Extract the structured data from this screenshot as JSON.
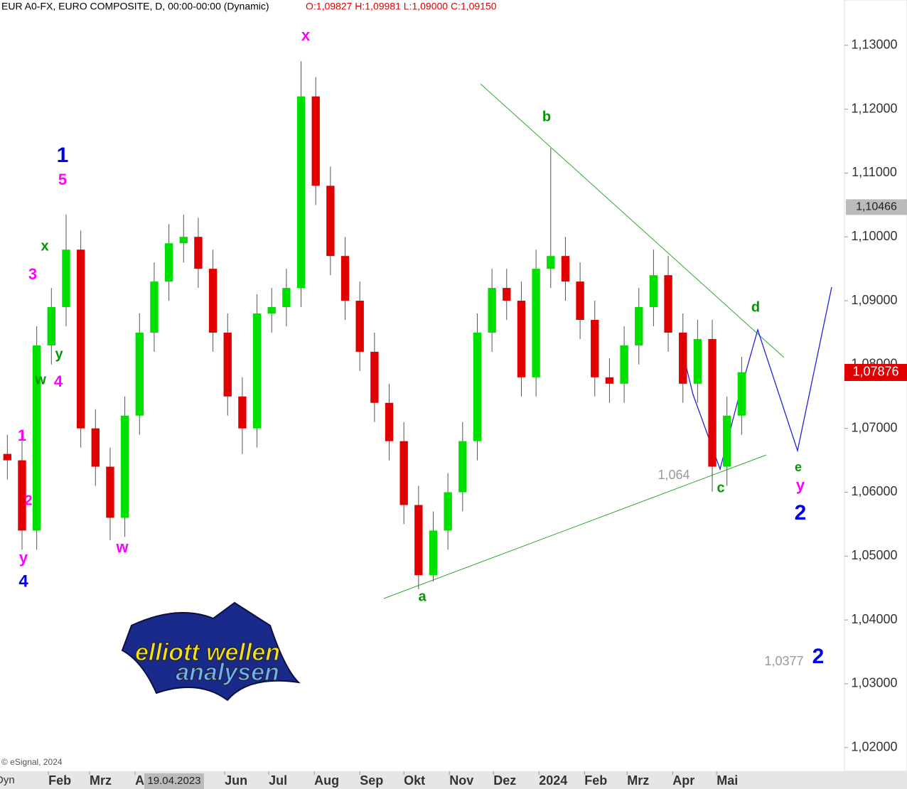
{
  "chart_data": {
    "type": "candlestick",
    "title": "EUR A0-FX, EURO COMPOSITE, D, 00:00-00:00 (Dynamic)",
    "subtitle": "O:1,09827 H:1,09981 L:1,09000 C:1,09150",
    "x": [
      3,
      13,
      23,
      33,
      43,
      53,
      63,
      73,
      83,
      93,
      103,
      113,
      123,
      133,
      143,
      153,
      163,
      173,
      183,
      193,
      203,
      213,
      223,
      233,
      243,
      253,
      263,
      273,
      283,
      293,
      303,
      313,
      323,
      333,
      343,
      353,
      363,
      373,
      383,
      393,
      403,
      413,
      423,
      433,
      443,
      453,
      463,
      473,
      483,
      493,
      503
    ],
    "open": [
      1.066,
      1.065,
      1.054,
      1.083,
      1.089,
      1.098,
      1.07,
      1.064,
      1.056,
      1.072,
      1.085,
      1.093,
      1.099,
      1.1,
      1.095,
      1.085,
      1.075,
      1.07,
      1.088,
      1.089,
      1.092,
      1.122,
      1.108,
      1.097,
      1.09,
      1.082,
      1.074,
      1.068,
      1.058,
      1.047,
      1.054,
      1.06,
      1.068,
      1.085,
      1.092,
      1.09,
      1.078,
      1.095,
      1.097,
      1.093,
      1.087,
      1.078,
      1.077,
      1.083,
      1.089,
      1.094,
      1.085,
      1.077,
      1.084,
      1.064,
      1.072
    ],
    "high": [
      1.069,
      1.068,
      1.086,
      1.092,
      1.1035,
      1.101,
      1.073,
      1.067,
      1.075,
      1.088,
      1.096,
      1.102,
      1.1035,
      1.103,
      1.098,
      1.088,
      1.078,
      1.091,
      1.092,
      1.095,
      1.1275,
      1.125,
      1.111,
      1.1,
      1.093,
      1.085,
      1.077,
      1.071,
      1.061,
      1.057,
      1.063,
      1.071,
      1.088,
      1.095,
      1.095,
      1.093,
      1.098,
      1.1139,
      1.1,
      1.096,
      1.09,
      1.081,
      1.086,
      1.092,
      1.098,
      1.097,
      1.088,
      1.087,
      1.087,
      1.075,
      1.0812
    ],
    "low": [
      1.062,
      1.051,
      1.051,
      1.08,
      1.086,
      1.067,
      1.061,
      1.0525,
      1.053,
      1.069,
      1.082,
      1.09,
      1.096,
      1.092,
      1.082,
      1.072,
      1.066,
      1.067,
      1.085,
      1.086,
      1.089,
      1.105,
      1.094,
      1.087,
      1.079,
      1.071,
      1.065,
      1.055,
      1.0448,
      1.046,
      1.051,
      1.057,
      1.065,
      1.082,
      1.087,
      1.075,
      1.075,
      1.092,
      1.09,
      1.084,
      1.075,
      1.074,
      1.074,
      1.08,
      1.086,
      1.082,
      1.074,
      1.074,
      1.0601,
      1.061,
      1.069
    ],
    "close": [
      1.065,
      1.054,
      1.083,
      1.089,
      1.098,
      1.07,
      1.064,
      1.056,
      1.072,
      1.085,
      1.093,
      1.099,
      1.1,
      1.095,
      1.085,
      1.075,
      1.07,
      1.088,
      1.089,
      1.092,
      1.122,
      1.108,
      1.097,
      1.09,
      1.082,
      1.074,
      1.068,
      1.058,
      1.047,
      1.054,
      1.06,
      1.068,
      1.085,
      1.092,
      1.09,
      1.078,
      1.095,
      1.097,
      1.093,
      1.087,
      1.078,
      1.077,
      1.083,
      1.089,
      1.094,
      1.085,
      1.077,
      1.084,
      1.064,
      1.072,
      1.0788
    ],
    "up_color": "#00e000",
    "down_color": "#e00000",
    "xlim": [
      -2,
      573
    ],
    "xticks": [
      {
        "value": 31,
        "label": "Feb"
      },
      {
        "value": 59,
        "label": "Mrz"
      },
      {
        "value": 90,
        "label": "A"
      },
      {
        "value": 151,
        "label": "Jun"
      },
      {
        "value": 181,
        "label": "Jul"
      },
      {
        "value": 212,
        "label": "Aug"
      },
      {
        "value": 243,
        "label": "Sep"
      },
      {
        "value": 273,
        "label": "Okt"
      },
      {
        "value": 304,
        "label": "Nov"
      },
      {
        "value": 334,
        "label": "Dez"
      },
      {
        "value": 365,
        "label": "2024"
      },
      {
        "value": 396,
        "label": "Feb"
      },
      {
        "value": 425,
        "label": "Mrz"
      },
      {
        "value": 456,
        "label": "Apr"
      },
      {
        "value": 486,
        "label": "Mai"
      }
    ],
    "ylim": [
      1.0163,
      1.1371
    ],
    "yticks": [
      {
        "value": 1.02,
        "label": "1,02000"
      },
      {
        "value": 1.03,
        "label": "1,03000"
      },
      {
        "value": 1.04,
        "label": "1,04000"
      },
      {
        "value": 1.05,
        "label": "1,05000"
      },
      {
        "value": 1.06,
        "label": "1,06000"
      },
      {
        "value": 1.07,
        "label": "1,07000"
      },
      {
        "value": 1.08,
        "label": "1,08000"
      },
      {
        "value": 1.09,
        "label": "1,09000"
      },
      {
        "value": 1.1,
        "label": "1,10000"
      },
      {
        "value": 1.11,
        "label": "1,11000"
      },
      {
        "value": 1.12,
        "label": "1,12000"
      },
      {
        "value": 1.13,
        "label": "1,13000"
      }
    ],
    "crosshair_price": {
      "value": 1.10466,
      "label": "1,10466"
    },
    "last_price": {
      "value": 1.07876,
      "label": "1,07876"
    },
    "crosshair_date": "19.04.2023",
    "interval_label": "Dyn",
    "copyright": "© eSignal, 2024",
    "logo": [
      "elliott wellen",
      "analysen"
    ],
    "annotations": [
      {
        "text": "x",
        "color": "#ff00ff"
      },
      {
        "text": "1",
        "color": "#0000ee"
      },
      {
        "text": "5",
        "color": "#ff00ff"
      },
      {
        "text": "x",
        "color": "#009900"
      },
      {
        "text": "3",
        "color": "#ff00ff"
      },
      {
        "text": "y",
        "color": "#009900"
      },
      {
        "text": "w",
        "color": "#009900"
      },
      {
        "text": "4",
        "color": "#ff00ff"
      },
      {
        "text": "1",
        "color": "#ff00ff"
      },
      {
        "text": "2",
        "color": "#ff00ff"
      },
      {
        "text": "y",
        "color": "#ff00ff"
      },
      {
        "text": "4",
        "color": "#0000ee"
      },
      {
        "text": "w",
        "color": "#ff00ff"
      },
      {
        "text": "b",
        "color": "#009900"
      },
      {
        "text": "d",
        "color": "#009900"
      },
      {
        "text": "1,064",
        "color": "#999999"
      },
      {
        "text": "c",
        "color": "#009900"
      },
      {
        "text": "e",
        "color": "#009900"
      },
      {
        "text": "y",
        "color": "#ff00ff"
      },
      {
        "text": "2",
        "color": "#0000ee"
      },
      {
        "text": "a",
        "color": "#009900"
      },
      {
        "text": "1,0377",
        "color": "#999999"
      },
      {
        "text": "2",
        "color": "#0000ee"
      }
    ]
  }
}
